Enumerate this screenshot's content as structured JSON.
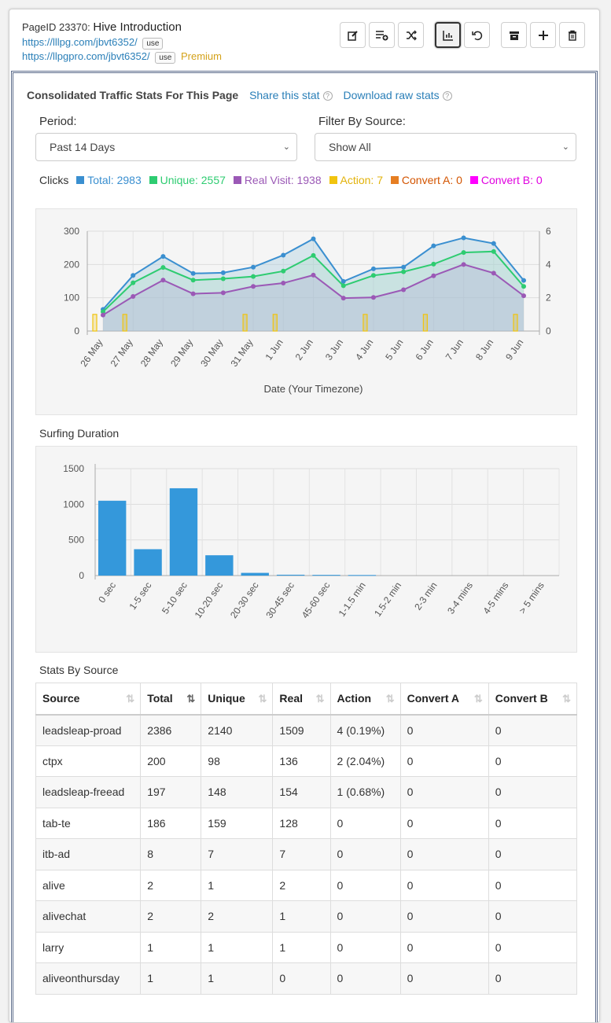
{
  "header": {
    "page_id_label": "PageID 23370:",
    "title": "Hive Introduction",
    "url1": "https://lllpg.com/jbvt6352/",
    "url2": "https://llpgpro.com/jbvt6352/",
    "use_label": "use",
    "premium_label": "Premium"
  },
  "toolbar": {
    "buttons": [
      "edit-icon",
      "add-to-list-icon",
      "shuffle-icon",
      "chart-icon",
      "undo-icon",
      "archive-icon",
      "plus-icon",
      "trash-icon"
    ],
    "active": "chart-icon"
  },
  "stats": {
    "heading": "Consolidated Traffic Stats For This Page",
    "share_link": "Share this stat",
    "download_link": "Download raw stats"
  },
  "filters": {
    "period_label": "Period:",
    "period_value": "Past 14 Days",
    "source_label": "Filter By Source:",
    "source_value": "Show All"
  },
  "legend": {
    "prefix": "Clicks",
    "items": [
      {
        "label": "Total: 2983",
        "color": "#3a8fd0"
      },
      {
        "label": "Unique: 2557",
        "color": "#2ecc71"
      },
      {
        "label": "Real Visit: 1938",
        "color": "#9b59b6"
      },
      {
        "label": "Action: 7",
        "color": "#f1c40f"
      },
      {
        "label": "Convert A: 0",
        "color": "#e67e22"
      },
      {
        "label": "Convert B: 0",
        "color": "#ff00ff"
      }
    ]
  },
  "chart_data": [
    {
      "type": "line",
      "xlabel": "Date (Your Timezone)",
      "x": [
        "26 May",
        "27 May",
        "28 May",
        "29 May",
        "30 May",
        "31 May",
        "1 Jun",
        "2 Jun",
        "3 Jun",
        "4 Jun",
        "5 Jun",
        "6 Jun",
        "7 Jun",
        "8 Jun",
        "9 Jun"
      ],
      "ylim": [
        0,
        300
      ],
      "yticks": [
        0,
        100,
        200,
        300
      ],
      "y2lim": [
        0,
        6
      ],
      "y2ticks": [
        0,
        2,
        4,
        6
      ],
      "series": [
        {
          "name": "Total",
          "color": "#3a8fd0",
          "values": [
            65,
            167,
            224,
            173,
            175,
            192,
            228,
            277,
            149,
            187,
            192,
            256,
            280,
            263,
            152
          ]
        },
        {
          "name": "Unique",
          "color": "#2ecc71",
          "values": [
            58,
            145,
            191,
            153,
            157,
            164,
            180,
            227,
            136,
            167,
            178,
            201,
            236,
            239,
            134
          ]
        },
        {
          "name": "Real Visit",
          "color": "#9b59b6",
          "values": [
            48,
            104,
            153,
            112,
            115,
            134,
            144,
            168,
            99,
            101,
            124,
            166,
            200,
            174,
            106
          ]
        },
        {
          "name": "Action",
          "color": "#f1c40f",
          "axis": "right",
          "values": [
            1,
            1,
            0,
            0,
            0,
            1,
            1,
            0,
            0,
            1,
            0,
            1,
            0,
            0,
            1
          ]
        }
      ]
    },
    {
      "type": "bar",
      "title": "Surfing Duration",
      "categories": [
        "0 sec",
        "1-5 sec",
        "5-10 sec",
        "10-20 sec",
        "20-30 sec",
        "30-45 sec",
        "45-60 sec",
        "1-1.5 min",
        "1.5-2 min",
        "2-3 min",
        "3-4 mins",
        "4-5 mins",
        "> 5 mins"
      ],
      "values": [
        1050,
        370,
        1225,
        285,
        38,
        12,
        10,
        8,
        0,
        0,
        0,
        0,
        0
      ],
      "ylim": [
        0,
        1500
      ],
      "yticks": [
        0,
        500,
        1000,
        1500
      ],
      "color": "#3498db"
    }
  ],
  "source_section": {
    "title": "Stats By Source",
    "columns": [
      "Source",
      "Total",
      "Unique",
      "Real",
      "Action",
      "Convert A",
      "Convert B"
    ],
    "rows": [
      [
        "leadsleap-proad",
        "2386",
        "2140",
        "1509",
        "4 (0.19%)",
        "0",
        "0"
      ],
      [
        "ctpx",
        "200",
        "98",
        "136",
        "2 (2.04%)",
        "0",
        "0"
      ],
      [
        "leadsleap-freead",
        "197",
        "148",
        "154",
        "1 (0.68%)",
        "0",
        "0"
      ],
      [
        "tab-te",
        "186",
        "159",
        "128",
        "0",
        "0",
        "0"
      ],
      [
        "itb-ad",
        "8",
        "7",
        "7",
        "0",
        "0",
        "0"
      ],
      [
        "alive",
        "2",
        "1",
        "2",
        "0",
        "0",
        "0"
      ],
      [
        "alivechat",
        "2",
        "2",
        "1",
        "0",
        "0",
        "0"
      ],
      [
        "larry",
        "1",
        "1",
        "1",
        "0",
        "0",
        "0"
      ],
      [
        "aliveonthursday",
        "1",
        "1",
        "0",
        "0",
        "0",
        "0"
      ]
    ]
  }
}
